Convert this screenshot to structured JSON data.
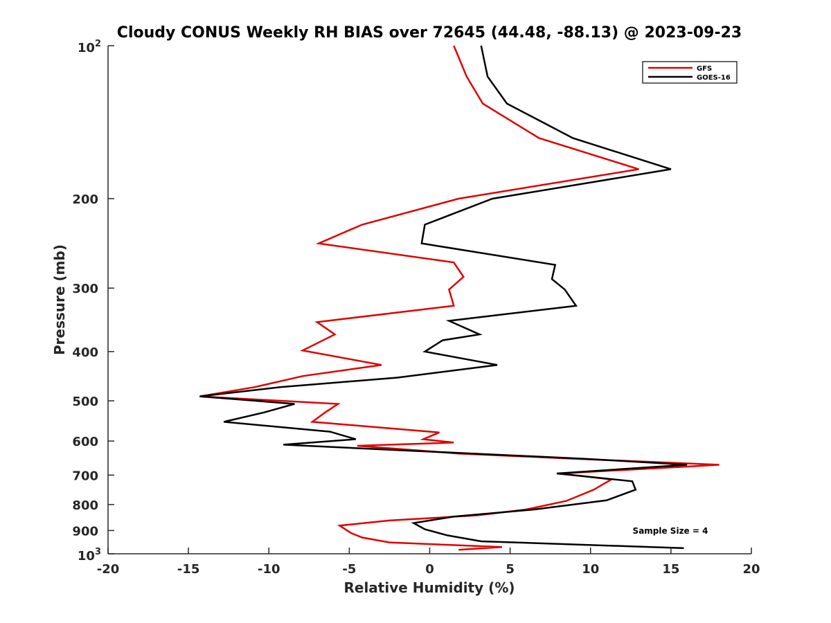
{
  "chart_data": {
    "type": "line",
    "title": "Cloudy CONUS Weekly RH BIAS over 72645 (44.48, -88.13) @ 2023-09-23",
    "xlabel": "Relative Humidity (%)",
    "ylabel": "Pressure (mb)",
    "xlim": [
      -20,
      20
    ],
    "ylim": [
      100,
      1000
    ],
    "y_scale": "log",
    "y_reversed": true,
    "x_ticks": [
      "-20",
      "-15",
      "-10",
      "-5",
      "0",
      "5",
      "10",
      "15",
      "20"
    ],
    "x_tick_values": [
      -20,
      -15,
      -10,
      -5,
      0,
      5,
      10,
      15,
      20
    ],
    "y_ticks": [
      {
        "value": 100,
        "base": "10",
        "exp": "2"
      },
      {
        "value": 200,
        "label": "200"
      },
      {
        "value": 300,
        "label": "300"
      },
      {
        "value": 400,
        "label": "400"
      },
      {
        "value": 500,
        "label": "500"
      },
      {
        "value": 600,
        "label": "600"
      },
      {
        "value": 700,
        "label": "700"
      },
      {
        "value": 800,
        "label": "800"
      },
      {
        "value": 900,
        "label": "900"
      },
      {
        "value": 1000,
        "base": "10",
        "exp": "3"
      }
    ],
    "grid": false,
    "legend_position": "top-right",
    "annotation": "Sample Size = 4",
    "series": [
      {
        "name": "GFS",
        "color": "#e00000",
        "points": [
          [
            1.5,
            100
          ],
          [
            2.3,
            115
          ],
          [
            3.3,
            130
          ],
          [
            6.8,
            152
          ],
          [
            13.0,
            175
          ],
          [
            1.8,
            200
          ],
          [
            -4.2,
            225
          ],
          [
            -6.9,
            245
          ],
          [
            1.5,
            267
          ],
          [
            2.1,
            285
          ],
          [
            1.2,
            302
          ],
          [
            1.5,
            325
          ],
          [
            -7.0,
            350
          ],
          [
            -5.9,
            370
          ],
          [
            -7.9,
            398
          ],
          [
            -3.0,
            425
          ],
          [
            -7.9,
            447
          ],
          [
            -10.9,
            470
          ],
          [
            -14.3,
            490
          ],
          [
            -5.7,
            507
          ],
          [
            -6.5,
            527
          ],
          [
            -7.3,
            550
          ],
          [
            0.6,
            577
          ],
          [
            -0.4,
            595
          ],
          [
            1.5,
            604
          ],
          [
            -4.5,
            613
          ],
          [
            1.8,
            635
          ],
          [
            9.0,
            650
          ],
          [
            18.0,
            668
          ],
          [
            8.1,
            695
          ],
          [
            11.3,
            714
          ],
          [
            10.2,
            748
          ],
          [
            8.5,
            787
          ],
          [
            6.0,
            818
          ],
          [
            3.0,
            840
          ],
          [
            -2.5,
            860
          ],
          [
            -5.6,
            880
          ],
          [
            -4.9,
            910
          ],
          [
            -4.2,
            929
          ],
          [
            -2.5,
            950
          ],
          [
            4.5,
            970
          ],
          [
            1.8,
            982
          ]
        ]
      },
      {
        "name": "GOES-16",
        "color": "#000000",
        "points": [
          [
            3.2,
            100
          ],
          [
            3.6,
            115
          ],
          [
            4.8,
            130
          ],
          [
            8.9,
            152
          ],
          [
            15.0,
            175
          ],
          [
            3.9,
            200
          ],
          [
            -0.3,
            225
          ],
          [
            -0.5,
            245
          ],
          [
            7.8,
            270
          ],
          [
            7.6,
            288
          ],
          [
            8.4,
            302
          ],
          [
            9.1,
            325
          ],
          [
            1.2,
            348
          ],
          [
            3.1,
            370
          ],
          [
            0.8,
            380
          ],
          [
            -0.3,
            400
          ],
          [
            4.2,
            425
          ],
          [
            -2.0,
            450
          ],
          [
            -9.3,
            470
          ],
          [
            -14.3,
            490
          ],
          [
            -8.4,
            507
          ],
          [
            -10.3,
            527
          ],
          [
            -12.8,
            550
          ],
          [
            -6.2,
            575
          ],
          [
            -4.6,
            595
          ],
          [
            -9.1,
            610
          ],
          [
            -2.0,
            625
          ],
          [
            9.6,
            650
          ],
          [
            16.0,
            668
          ],
          [
            7.9,
            695
          ],
          [
            12.6,
            720
          ],
          [
            12.8,
            748
          ],
          [
            11.0,
            785
          ],
          [
            6.5,
            818
          ],
          [
            1.5,
            845
          ],
          [
            -1.0,
            870
          ],
          [
            -0.3,
            895
          ],
          [
            1.1,
            920
          ],
          [
            3.2,
            945
          ],
          [
            10.5,
            962
          ],
          [
            15.8,
            975
          ]
        ]
      }
    ]
  }
}
